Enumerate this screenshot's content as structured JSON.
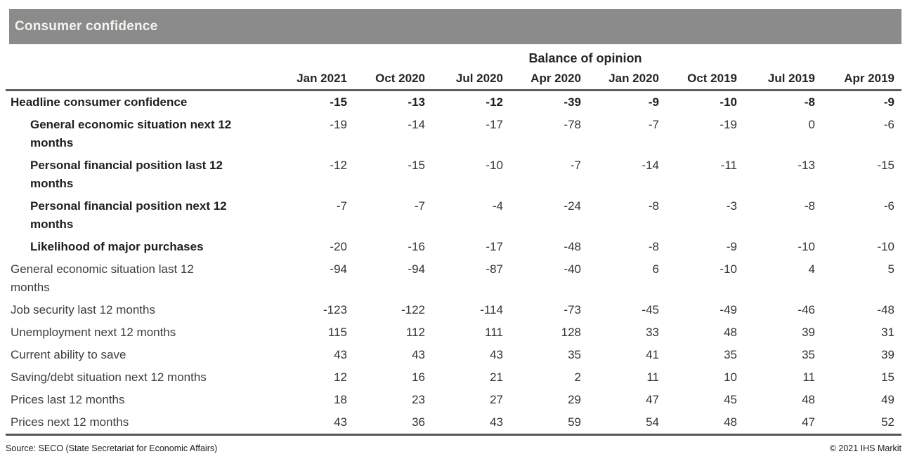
{
  "colors": {
    "title_bar_bg": "#8b8b8b",
    "title_bar_fg": "#f4f3ee",
    "rule": "#5f5f5f",
    "bold_text": "#1f1f1f",
    "regular_text": "#3d3d3d"
  },
  "chart_data": {
    "type": "table",
    "title": "Consumer confidence",
    "group_header": "Balance of opinion",
    "columns": [
      "Jan 2021",
      "Oct 2020",
      "Jul 2020",
      "Apr 2020",
      "Jan 2020",
      "Oct 2019",
      "Jul 2019",
      "Apr 2019"
    ],
    "rows": [
      {
        "label": "Headline consumer confidence",
        "bold": true,
        "indent": false,
        "values_bold": true,
        "values": [
          -15,
          -13,
          -12,
          -39,
          -9,
          -10,
          -8,
          -9
        ]
      },
      {
        "label": "General economic situation next 12 months",
        "bold": true,
        "indent": true,
        "values_bold": false,
        "values": [
          -19,
          -14,
          -17,
          -78,
          -7,
          -19,
          0,
          -6
        ]
      },
      {
        "label": "Personal financial position last 12 months",
        "bold": true,
        "indent": true,
        "values_bold": false,
        "values": [
          -12,
          -15,
          -10,
          -7,
          -14,
          -11,
          -13,
          -15
        ]
      },
      {
        "label": "Personal financial position next 12 months",
        "bold": true,
        "indent": true,
        "values_bold": false,
        "values": [
          -7,
          -7,
          -4,
          -24,
          -8,
          -3,
          -8,
          -6
        ]
      },
      {
        "label": "Likelihood of major purchases",
        "bold": true,
        "indent": true,
        "values_bold": false,
        "values": [
          -20,
          -16,
          -17,
          -48,
          -8,
          -9,
          -10,
          -10
        ]
      },
      {
        "label": "General economic situation last 12 months",
        "bold": false,
        "indent": false,
        "values_bold": false,
        "values": [
          -94,
          -94,
          -87,
          -40,
          6,
          -10,
          4,
          5
        ]
      },
      {
        "label": "Job security last 12 months",
        "bold": false,
        "indent": false,
        "values_bold": false,
        "values": [
          -123,
          -122,
          -114,
          -73,
          -45,
          -49,
          -46,
          -48
        ]
      },
      {
        "label": "Unemployment next 12 months",
        "bold": false,
        "indent": false,
        "values_bold": false,
        "values": [
          115,
          112,
          111,
          128,
          33,
          48,
          39,
          31
        ]
      },
      {
        "label": "Current ability to save",
        "bold": false,
        "indent": false,
        "values_bold": false,
        "values": [
          43,
          43,
          43,
          35,
          41,
          35,
          35,
          39
        ]
      },
      {
        "label": "Saving/debt situation next 12 months",
        "bold": false,
        "indent": false,
        "values_bold": false,
        "values": [
          12,
          16,
          21,
          2,
          11,
          10,
          11,
          15
        ]
      },
      {
        "label": "Prices last 12 months",
        "bold": false,
        "indent": false,
        "values_bold": false,
        "values": [
          18,
          23,
          27,
          29,
          47,
          45,
          48,
          49
        ]
      },
      {
        "label": "Prices next 12 months",
        "bold": false,
        "indent": false,
        "values_bold": false,
        "values": [
          43,
          36,
          43,
          59,
          54,
          48,
          47,
          52
        ]
      }
    ]
  },
  "footer": {
    "source": "Source: SECO (State Secretariat for Economic Affairs)",
    "copyright": "© 2021 IHS Markit"
  }
}
